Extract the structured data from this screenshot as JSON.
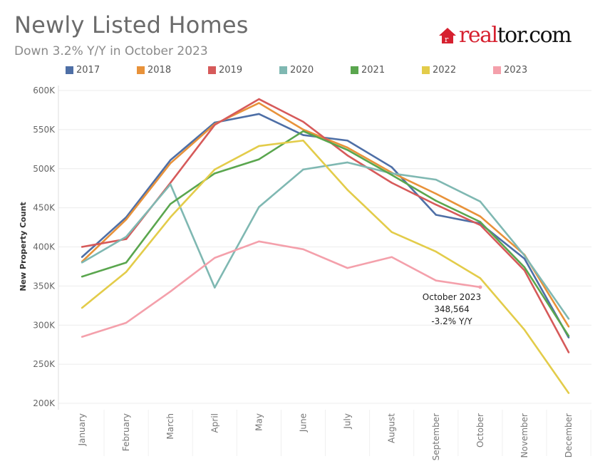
{
  "header": {
    "title": "Newly Listed Homes",
    "subtitle": "Down 3.2% Y/Y in October 2023",
    "logo": "realtor.com"
  },
  "chart_data": {
    "type": "line",
    "ylabel": "New Property Count",
    "xlabel": "",
    "ylim": [
      200000,
      600000
    ],
    "yticks": [
      200000,
      250000,
      300000,
      350000,
      400000,
      450000,
      500000,
      550000,
      600000
    ],
    "ytick_labels": [
      "200K",
      "250K",
      "300K",
      "350K",
      "400K",
      "450K",
      "500K",
      "550K",
      "600K"
    ],
    "grid": true,
    "legend_position": "top",
    "categories": [
      "January",
      "February",
      "March",
      "April",
      "May",
      "June",
      "July",
      "August",
      "September",
      "October",
      "November",
      "December"
    ],
    "series": [
      {
        "name": "2017",
        "color": "#4e6fa6",
        "values": [
          387000,
          438000,
          511000,
          559000,
          570000,
          543000,
          536000,
          502000,
          441000,
          430000,
          385000,
          284000
        ]
      },
      {
        "name": "2018",
        "color": "#e8923a",
        "values": [
          381000,
          435000,
          507000,
          557000,
          584000,
          550000,
          527000,
          495000,
          468000,
          439000,
          390000,
          298000
        ]
      },
      {
        "name": "2019",
        "color": "#d65a5a",
        "values": [
          400000,
          410000,
          482000,
          556000,
          589000,
          560000,
          517000,
          482000,
          454000,
          428000,
          370000,
          265000
        ]
      },
      {
        "name": "2020",
        "color": "#7fb8b2",
        "values": [
          380000,
          413000,
          480000,
          348000,
          451000,
          499000,
          508000,
          494000,
          486000,
          458000,
          389000,
          308000
        ]
      },
      {
        "name": "2021",
        "color": "#5aa64e",
        "values": [
          362000,
          380000,
          455000,
          494000,
          512000,
          548000,
          524000,
          492000,
          459000,
          432000,
          374000,
          286000
        ]
      },
      {
        "name": "2022",
        "color": "#e3cc4a",
        "values": [
          322000,
          368000,
          438000,
          499000,
          529000,
          536000,
          473000,
          419000,
          394000,
          360000,
          294000,
          213000
        ]
      },
      {
        "name": "2023",
        "color": "#f4a0ab",
        "values": [
          285000,
          303000,
          343000,
          386000,
          407000,
          397000,
          373000,
          387000,
          357000,
          348564,
          null,
          null
        ]
      }
    ],
    "annotation": {
      "lines": [
        "October 2023",
        "348,564",
        "-3.2% Y/Y"
      ],
      "category": "October",
      "value": 348564
    }
  }
}
